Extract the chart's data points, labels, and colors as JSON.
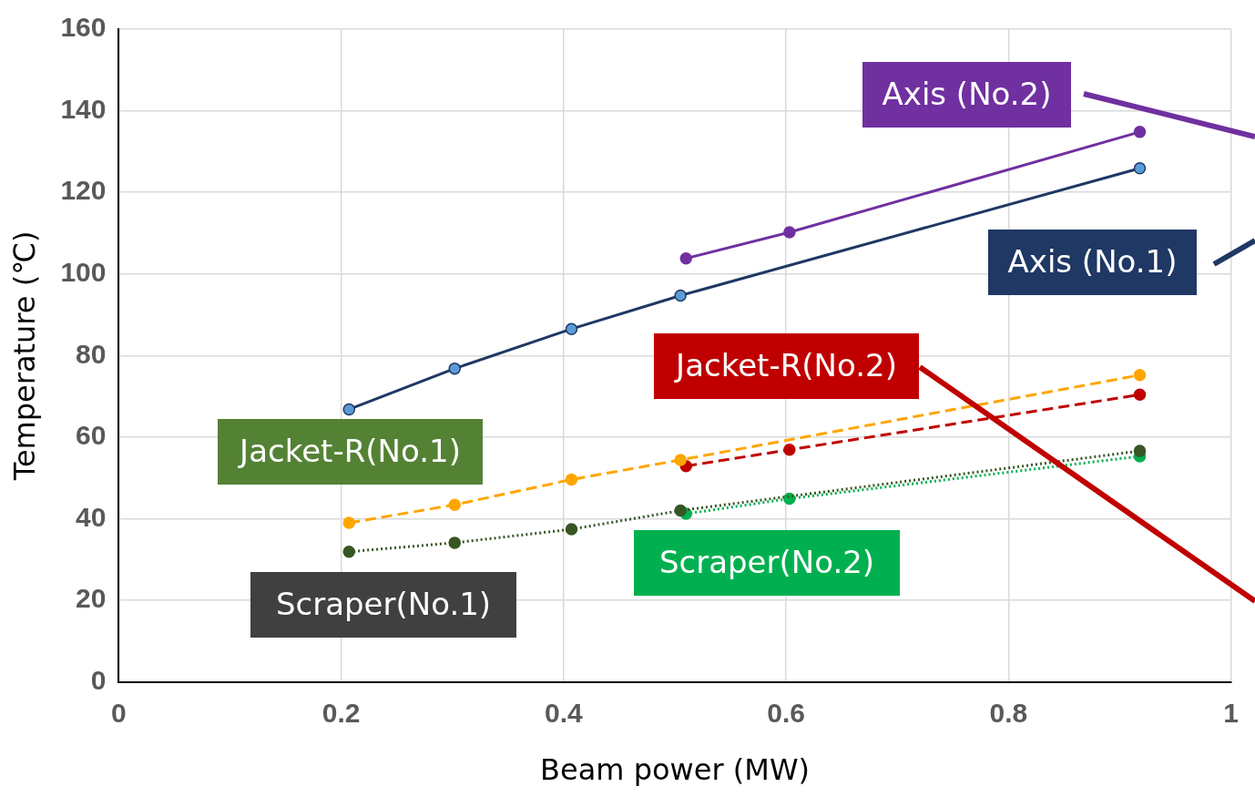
{
  "chart_data": {
    "type": "line",
    "xlabel": "Beam power (MW)",
    "ylabel": "Temperature (℃)",
    "xlim": [
      0,
      1
    ],
    "xticks": [
      0,
      0.2,
      0.4,
      0.6,
      0.8,
      1
    ],
    "ylim": [
      0,
      160
    ],
    "yticks": [
      0,
      20,
      40,
      60,
      80,
      100,
      120,
      140,
      160
    ],
    "grid": true,
    "legend": "right",
    "marker": "circle",
    "series": [
      {
        "name": "Axis (No.1)",
        "color": "#1f3864",
        "line_style": "solid",
        "x": [
          0.207,
          0.302,
          0.407,
          0.505,
          0.918
        ],
        "values": [
          66.8,
          76.8,
          86.5,
          94.7,
          125.9
        ]
      },
      {
        "name": "Axis (No.2)",
        "color": "#7030a0",
        "line_style": "solid",
        "x": [
          0.51,
          0.603,
          0.918
        ],
        "values": [
          103.8,
          110.2,
          134.8
        ]
      },
      {
        "name": "Jacket-R(No.1)",
        "color": "#ffa500",
        "line_style": "dashed",
        "x": [
          0.207,
          0.302,
          0.407,
          0.505,
          0.918
        ],
        "values": [
          39.0,
          43.4,
          49.6,
          54.4,
          75.2
        ]
      },
      {
        "name": "Jacket-R(No.2)",
        "color": "#c00000",
        "line_style": "dashed",
        "x": [
          0.51,
          0.603,
          0.918
        ],
        "values": [
          52.9,
          56.9,
          70.4
        ]
      },
      {
        "name": "Scraper(No.1)",
        "color": "#375623",
        "line_style": "dotted",
        "x": [
          0.207,
          0.302,
          0.407,
          0.505,
          0.918
        ],
        "values": [
          31.9,
          34.1,
          37.4,
          42.0,
          56.6
        ]
      },
      {
        "name": "Scraper(No.2)",
        "color": "#00b050",
        "line_style": "dotted",
        "x": [
          0.51,
          0.603,
          0.918
        ],
        "values": [
          41.2,
          44.9,
          55.3
        ]
      }
    ]
  }
}
